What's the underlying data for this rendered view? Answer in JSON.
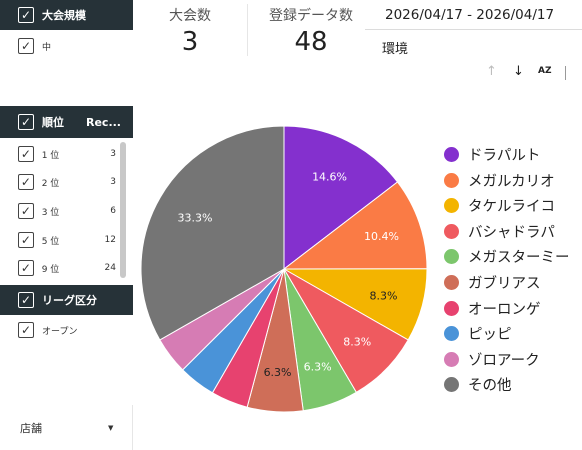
{
  "filters": {
    "tournament_size": {
      "title": "大会規模",
      "options": [
        "中"
      ]
    },
    "rank": {
      "title": "順位",
      "col_records": "Rec...",
      "rows": [
        {
          "rank": "1 位",
          "records": "3"
        },
        {
          "rank": "2 位",
          "records": "3"
        },
        {
          "rank": "3 位",
          "records": "6"
        },
        {
          "rank": "5 位",
          "records": "12"
        },
        {
          "rank": "9 位",
          "records": "24"
        }
      ]
    },
    "league": {
      "title": "リーグ区分",
      "options": [
        "オープン"
      ]
    },
    "store": {
      "label": "店舗"
    }
  },
  "kpis": {
    "tournaments": {
      "label": "大会数",
      "value": "3"
    },
    "registrations": {
      "label": "登録データ数",
      "value": "48"
    }
  },
  "date_range": "2026/04/17 - 2026/04/17",
  "environment_label": "環境",
  "toolbar": {
    "sort_asc_icon": "arrow-up-icon",
    "sort_desc_icon": "arrow-down-icon",
    "sort_az_label": "AZ"
  },
  "chart_data": {
    "type": "pie",
    "slices": [
      {
        "name": "ドラパルト",
        "value": 14.6,
        "color": "#8430CE",
        "label": "14.6%"
      },
      {
        "name": "メガルカリオ",
        "value": 10.4,
        "color": "#FA7B45",
        "label": "10.4%"
      },
      {
        "name": "タケルライコ",
        "value": 8.3,
        "color": "#F3B400",
        "label": "8.3%"
      },
      {
        "name": "バシャドラパ",
        "value": 8.3,
        "color": "#EF5A5F",
        "label": "8.3%"
      },
      {
        "name": "メガスターミー",
        "value": 6.3,
        "color": "#7CC66C",
        "label": "6.3%"
      },
      {
        "name": "ガブリアス",
        "value": 6.3,
        "color": "#CF6E58",
        "label": "6.3%"
      },
      {
        "name": "オーロンゲ",
        "value": 4.2,
        "color": "#E7426F",
        "label": ""
      },
      {
        "name": "ピッピ",
        "value": 4.2,
        "color": "#4A93D8",
        "label": ""
      },
      {
        "name": "ゾロアーク",
        "value": 4.2,
        "color": "#D67CB4",
        "label": ""
      },
      {
        "name": "その他",
        "value": 33.3,
        "color": "#757575",
        "label": "33.3%"
      }
    ]
  }
}
